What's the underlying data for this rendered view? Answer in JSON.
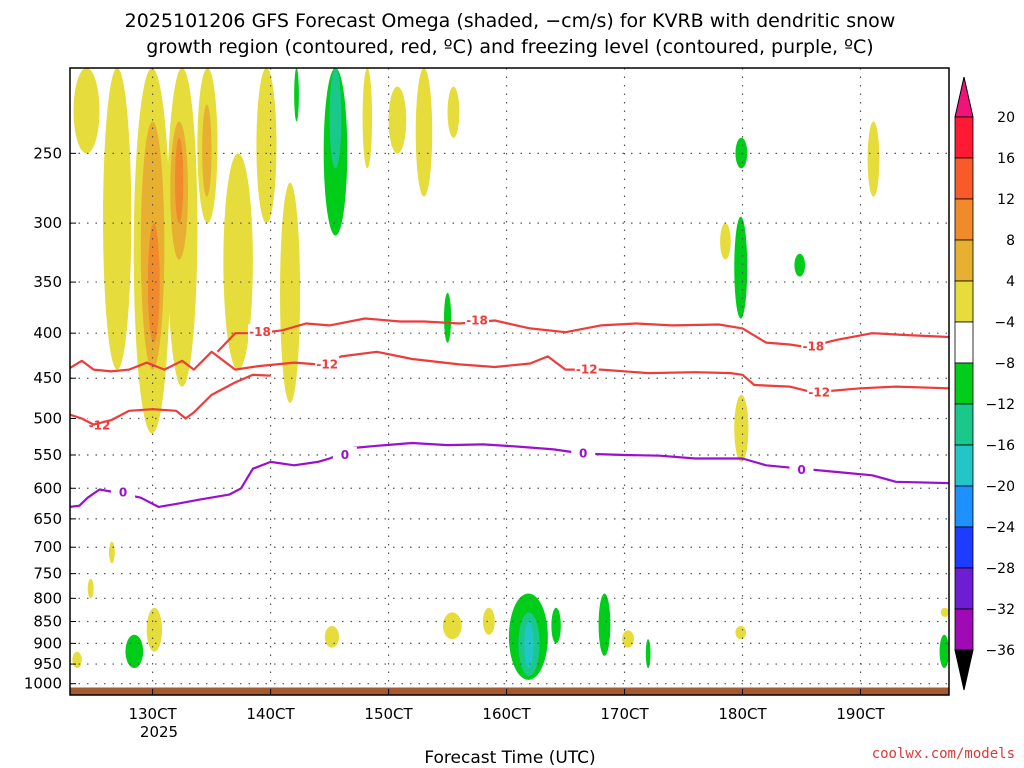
{
  "chart_data": {
    "type": "heatmap",
    "title_lines": [
      "2025101206 GFS Forecast Omega (shaded, −cm/s) for KVRB with dendritic snow",
      "growth region (contoured, red, ºC) and freezing level (contoured, purple, ºC)"
    ],
    "xlabel": "Forecast Time (UTC)",
    "credit": "coolwx.com/models",
    "y_axis": {
      "scale": "log-pressure",
      "reversed": true,
      "ticks": [
        250,
        300,
        350,
        400,
        450,
        500,
        550,
        600,
        650,
        700,
        750,
        800,
        850,
        900,
        950,
        1000
      ],
      "tick_labels": [
        "250",
        "300",
        "350",
        "400",
        "450",
        "500",
        "550",
        "600",
        "650",
        "700",
        "750",
        "800",
        "850",
        "900",
        "950",
        "1000"
      ],
      "range": [
        200,
        1030
      ]
    },
    "x_axis": {
      "unit": "hours",
      "range": [
        123,
        197.5
      ],
      "ticks": [
        130,
        140,
        150,
        160,
        170,
        180,
        190
      ],
      "tick_labels": [
        "130CT",
        "140CT",
        "150CT",
        "160CT",
        "170CT",
        "180CT",
        "190CT"
      ],
      "year_label": "2025",
      "grid": true
    },
    "colorbar": {
      "labels": [
        "20",
        "16",
        "12",
        "8",
        "4",
        "−4",
        "−8",
        "−12",
        "−16",
        "−20",
        "−24",
        "−28",
        "−32",
        "−36"
      ],
      "colors": [
        "#ff1a33",
        "#f85a2a",
        "#f08a2a",
        "#e8b030",
        "#e6dc3c",
        "#ffffff",
        "#00cc1a",
        "#1ac88c",
        "#22c6c6",
        "#1e90ff",
        "#1e3cff",
        "#6e1ed2",
        "#a00ab4",
        "#a0a0a0"
      ],
      "top_color": "#f0147a",
      "bottom_color": "#000000"
    },
    "shaded_regions": [
      {
        "kind": "up",
        "level": 4,
        "x": [
          123.3,
          125.5
        ],
        "p": [
          200,
          250
        ]
      },
      {
        "kind": "up",
        "level": 4,
        "x": [
          125.8,
          128.2
        ],
        "p": [
          200,
          440
        ]
      },
      {
        "kind": "up",
        "level": 4,
        "x": [
          128.4,
          131.5
        ],
        "p": [
          200,
          520
        ]
      },
      {
        "kind": "up",
        "level": 8,
        "x": [
          129.0,
          131.0
        ],
        "p": [
          230,
          440
        ]
      },
      {
        "kind": "up",
        "level": 12,
        "x": [
          129.6,
          130.6
        ],
        "p": [
          300,
          410
        ]
      },
      {
        "kind": "up",
        "level": 4,
        "x": [
          131.2,
          133.8
        ],
        "p": [
          200,
          460
        ]
      },
      {
        "kind": "up",
        "level": 8,
        "x": [
          131.5,
          133.0
        ],
        "p": [
          230,
          330
        ]
      },
      {
        "kind": "up",
        "level": 12,
        "x": [
          131.9,
          132.6
        ],
        "p": [
          240,
          300
        ]
      },
      {
        "kind": "up",
        "level": 4,
        "x": [
          133.8,
          135.5
        ],
        "p": [
          200,
          300
        ]
      },
      {
        "kind": "up",
        "level": 8,
        "x": [
          134.2,
          135.0
        ],
        "p": [
          220,
          280
        ]
      },
      {
        "kind": "up",
        "level": 4,
        "x": [
          136.0,
          138.5
        ],
        "p": [
          250,
          440
        ]
      },
      {
        "kind": "up",
        "level": 4,
        "x": [
          138.8,
          140.5
        ],
        "p": [
          200,
          300
        ]
      },
      {
        "kind": "up",
        "level": 4,
        "x": [
          140.8,
          142.5
        ],
        "p": [
          270,
          480
        ]
      },
      {
        "kind": "down",
        "level": -4,
        "x": [
          144.5,
          146.5
        ],
        "p": [
          200,
          310
        ]
      },
      {
        "kind": "down",
        "level": -8,
        "x": [
          145.0,
          146.0
        ],
        "p": [
          200,
          260
        ]
      },
      {
        "kind": "down",
        "level": -4,
        "x": [
          142.0,
          142.4
        ],
        "p": [
          200,
          230
        ]
      },
      {
        "kind": "up",
        "level": 4,
        "x": [
          147.8,
          148.6
        ],
        "p": [
          200,
          260
        ]
      },
      {
        "kind": "up",
        "level": 4,
        "x": [
          150.0,
          151.5
        ],
        "p": [
          210,
          250
        ]
      },
      {
        "kind": "up",
        "level": 4,
        "x": [
          152.3,
          153.7
        ],
        "p": [
          200,
          280
        ]
      },
      {
        "kind": "up",
        "level": 4,
        "x": [
          155.0,
          156.0
        ],
        "p": [
          210,
          240
        ]
      },
      {
        "kind": "down",
        "level": -4,
        "x": [
          154.7,
          155.3
        ],
        "p": [
          360,
          410
        ]
      },
      {
        "kind": "down",
        "level": -4,
        "x": [
          179.4,
          180.4
        ],
        "p": [
          240,
          260
        ]
      },
      {
        "kind": "down",
        "level": -4,
        "x": [
          179.3,
          180.4
        ],
        "p": [
          295,
          385
        ]
      },
      {
        "kind": "up",
        "level": 4,
        "x": [
          178.1,
          179.0
        ],
        "p": [
          300,
          330
        ]
      },
      {
        "kind": "down",
        "level": -4,
        "x": [
          184.4,
          185.3
        ],
        "p": [
          325,
          345
        ]
      },
      {
        "kind": "up",
        "level": 4,
        "x": [
          190.6,
          191.6
        ],
        "p": [
          230,
          280
        ]
      },
      {
        "kind": "up",
        "level": 4,
        "x": [
          179.3,
          180.5
        ],
        "p": [
          470,
          560
        ]
      },
      {
        "kind": "up",
        "level": 4,
        "x": [
          126.3,
          126.8
        ],
        "p": [
          690,
          730
        ]
      },
      {
        "kind": "up",
        "level": 4,
        "x": [
          124.5,
          125.0
        ],
        "p": [
          760,
          800
        ]
      },
      {
        "kind": "up",
        "level": 4,
        "x": [
          123.2,
          124.0
        ],
        "p": [
          920,
          960
        ]
      },
      {
        "kind": "up",
        "level": 4,
        "x": [
          129.5,
          130.8
        ],
        "p": [
          820,
          920
        ]
      },
      {
        "kind": "down",
        "level": -4,
        "x": [
          127.7,
          129.2
        ],
        "p": [
          880,
          960
        ]
      },
      {
        "kind": "up",
        "level": 4,
        "x": [
          144.6,
          145.8
        ],
        "p": [
          860,
          910
        ]
      },
      {
        "kind": "up",
        "level": 4,
        "x": [
          158.0,
          159.0
        ],
        "p": [
          820,
          880
        ]
      },
      {
        "kind": "up",
        "level": 4,
        "x": [
          154.6,
          156.2
        ],
        "p": [
          830,
          890
        ]
      },
      {
        "kind": "down",
        "level": -4,
        "x": [
          160.2,
          163.5
        ],
        "p": [
          790,
          990
        ]
      },
      {
        "kind": "down",
        "level": -8,
        "x": [
          161.0,
          162.8
        ],
        "p": [
          830,
          980
        ]
      },
      {
        "kind": "down",
        "level": -12,
        "x": [
          161.5,
          162.3
        ],
        "p": [
          850,
          960
        ]
      },
      {
        "kind": "down",
        "level": -4,
        "x": [
          167.8,
          168.8
        ],
        "p": [
          790,
          930
        ]
      },
      {
        "kind": "down",
        "level": -4,
        "x": [
          163.8,
          164.6
        ],
        "p": [
          820,
          900
        ]
      },
      {
        "kind": "down",
        "level": -4,
        "x": [
          171.8,
          172.2
        ],
        "p": [
          890,
          960
        ]
      },
      {
        "kind": "up",
        "level": 4,
        "x": [
          169.8,
          170.8
        ],
        "p": [
          870,
          910
        ]
      },
      {
        "kind": "up",
        "level": 4,
        "x": [
          179.4,
          180.3
        ],
        "p": [
          860,
          890
        ]
      },
      {
        "kind": "down",
        "level": -4,
        "x": [
          196.7,
          197.5
        ],
        "p": [
          880,
          960
        ]
      },
      {
        "kind": "up",
        "level": 4,
        "x": [
          196.8,
          197.5
        ],
        "p": [
          820,
          840
        ]
      }
    ],
    "contours": [
      {
        "name": "-18",
        "color": "#ee3b3b",
        "labels": [
          {
            "text": "-18",
            "x": 139.1,
            "p": 399
          },
          {
            "text": "-18",
            "x": 157.5,
            "p": 387
          },
          {
            "text": "-18",
            "x": 186.0,
            "p": 414
          }
        ],
        "points": [
          [
            135.5,
            420
          ],
          [
            137.0,
            400
          ],
          [
            139.0,
            400
          ],
          [
            141.0,
            397
          ],
          [
            143.0,
            390
          ],
          [
            145.0,
            392
          ],
          [
            148.0,
            385
          ],
          [
            151.0,
            388
          ],
          [
            153.0,
            388
          ],
          [
            156.0,
            390
          ],
          [
            159.0,
            387
          ],
          [
            162.0,
            395
          ],
          [
            165.0,
            399
          ],
          [
            168.0,
            392
          ],
          [
            171.0,
            390
          ],
          [
            174.0,
            392
          ],
          [
            178.0,
            391
          ],
          [
            180.0,
            395
          ],
          [
            182.0,
            410
          ],
          [
            184.0,
            412
          ],
          [
            185.5,
            415
          ],
          [
            188.0,
            407
          ],
          [
            191.0,
            400
          ],
          [
            194.0,
            402
          ],
          [
            197.5,
            404
          ]
        ]
      },
      {
        "name": "-12",
        "color": "#ee3b3b",
        "labels": [
          {
            "text": "-12",
            "x": 125.5,
            "p": 509
          },
          {
            "text": "-12",
            "x": 144.8,
            "p": 434
          },
          {
            "text": "-12",
            "x": 166.8,
            "p": 440
          },
          {
            "text": "-12",
            "x": 186.5,
            "p": 467
          }
        ],
        "points": [
          [
            123.0,
            438
          ],
          [
            124.0,
            430
          ],
          [
            125.0,
            440
          ],
          [
            126.5,
            442
          ],
          [
            128.0,
            440
          ],
          [
            129.5,
            432
          ],
          [
            131.0,
            440
          ],
          [
            132.5,
            430
          ],
          [
            133.5,
            440
          ],
          [
            135.0,
            420
          ],
          [
            137.0,
            440
          ],
          [
            139.0,
            436
          ],
          [
            142.0,
            432
          ],
          [
            144.0,
            434
          ],
          [
            146.0,
            425
          ],
          [
            149.0,
            420
          ],
          [
            152.0,
            428
          ],
          [
            156.0,
            434
          ],
          [
            159.0,
            437
          ],
          [
            162.0,
            433
          ],
          [
            163.5,
            425
          ],
          [
            165.0,
            440
          ],
          [
            168.0,
            440
          ],
          [
            172.0,
            444
          ],
          [
            176.0,
            443
          ],
          [
            179.0,
            444
          ],
          [
            180.0,
            446
          ],
          [
            181.0,
            458
          ],
          [
            184.0,
            460
          ],
          [
            186.0,
            467
          ],
          [
            190.0,
            462
          ],
          [
            193.0,
            460
          ],
          [
            197.5,
            462
          ]
        ]
      },
      {
        "name": "-12-low",
        "color": "#ee3b3b",
        "labels": [],
        "points": [
          [
            123.0,
            495
          ],
          [
            124.0,
            500
          ],
          [
            125.0,
            508
          ],
          [
            126.5,
            502
          ],
          [
            128.0,
            490
          ],
          [
            130.0,
            488
          ],
          [
            132.0,
            490
          ],
          [
            132.8,
            500
          ],
          [
            133.5,
            492
          ],
          [
            135.0,
            470
          ],
          [
            137.0,
            455
          ],
          [
            138.5,
            446
          ],
          [
            140.0,
            447
          ]
        ]
      },
      {
        "name": "0",
        "color": "#9b0fd0",
        "labels": [
          {
            "text": "0",
            "x": 127.5,
            "p": 607
          },
          {
            "text": "0",
            "x": 146.3,
            "p": 550
          },
          {
            "text": "0",
            "x": 166.5,
            "p": 548
          },
          {
            "text": "0",
            "x": 185.0,
            "p": 572
          }
        ],
        "points": [
          [
            123.0,
            630
          ],
          [
            123.8,
            628
          ],
          [
            124.5,
            615
          ],
          [
            125.5,
            602
          ],
          [
            127.0,
            607
          ],
          [
            129.0,
            615
          ],
          [
            130.5,
            630
          ],
          [
            132.0,
            625
          ],
          [
            134.0,
            618
          ],
          [
            136.5,
            610
          ],
          [
            137.5,
            600
          ],
          [
            138.5,
            570
          ],
          [
            140.0,
            560
          ],
          [
            142.0,
            565
          ],
          [
            144.0,
            560
          ],
          [
            145.0,
            555
          ],
          [
            146.0,
            548
          ],
          [
            147.0,
            540
          ],
          [
            149.0,
            537
          ],
          [
            152.0,
            533
          ],
          [
            155.0,
            536
          ],
          [
            158.0,
            535
          ],
          [
            161.0,
            538
          ],
          [
            164.0,
            542
          ],
          [
            166.5,
            548
          ],
          [
            170.0,
            550
          ],
          [
            173.0,
            551
          ],
          [
            176.0,
            555
          ],
          [
            180.0,
            555
          ],
          [
            182.0,
            565
          ],
          [
            185.0,
            570
          ],
          [
            188.0,
            575
          ],
          [
            191.0,
            580
          ],
          [
            193.0,
            590
          ],
          [
            197.5,
            592
          ]
        ]
      }
    ],
    "terrain_color": "#a45a2e"
  }
}
